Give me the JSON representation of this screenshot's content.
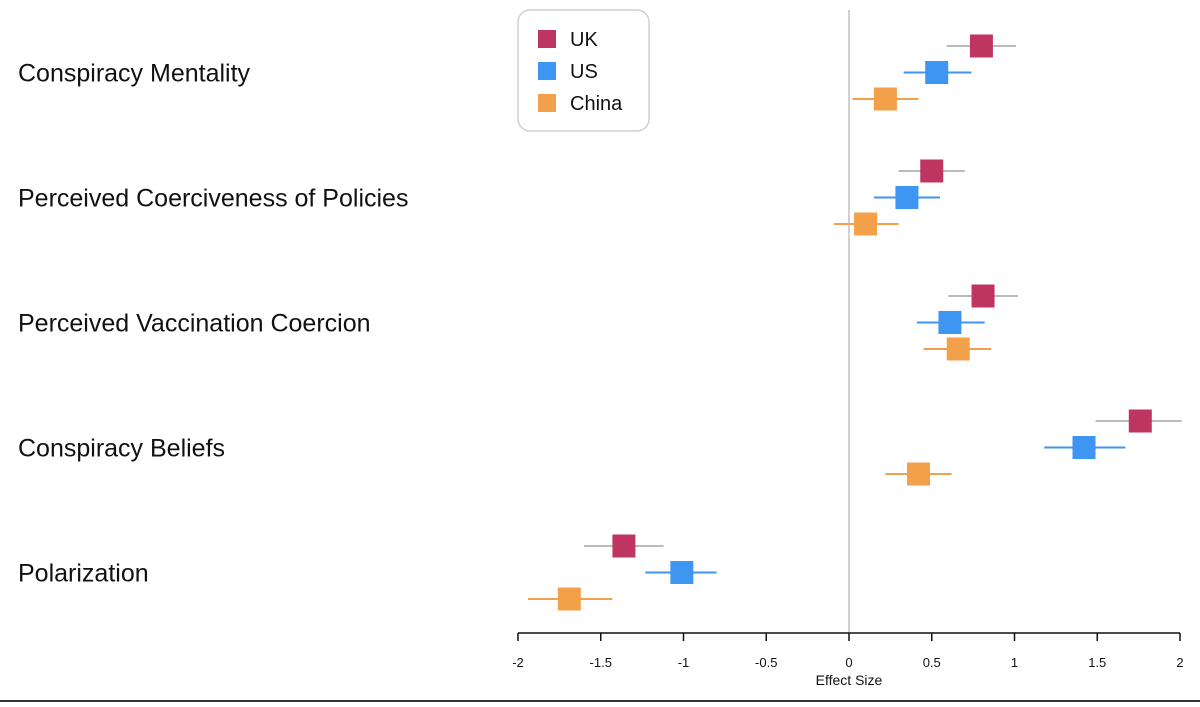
{
  "chart_data": {
    "type": "forest",
    "xlabel": "Effect Size",
    "xlim": [
      -2,
      2
    ],
    "xticks": [
      -2,
      -1.5,
      -1,
      -0.5,
      0,
      0.5,
      1,
      1.5,
      2
    ],
    "xtick_labels": [
      "-2",
      "-1.5",
      "-1",
      "-0.5",
      "0",
      "0.5",
      "1",
      "1.5",
      "2"
    ],
    "reference_line": 0,
    "grid": false,
    "legend_position": "top-center",
    "categories": [
      "Conspiracy Mentality",
      "Perceived Coerciveness of Policies",
      "Perceived Vaccination Coercion",
      "Conspiracy Beliefs",
      "Polarization"
    ],
    "series": [
      {
        "name": "UK",
        "color": "#bf3561",
        "ci_color": "#bbbbbb",
        "estimates": [
          0.8,
          0.5,
          0.81,
          1.76,
          -1.36
        ],
        "ci_low": [
          0.59,
          0.3,
          0.6,
          1.49,
          -1.6
        ],
        "ci_high": [
          1.01,
          0.7,
          1.02,
          2.01,
          -1.12
        ]
      },
      {
        "name": "US",
        "color": "#3f95f2",
        "ci_color": "#3f95f2",
        "estimates": [
          0.53,
          0.35,
          0.61,
          1.42,
          -1.01
        ],
        "ci_low": [
          0.33,
          0.15,
          0.41,
          1.18,
          -1.23
        ],
        "ci_high": [
          0.74,
          0.55,
          0.82,
          1.67,
          -0.8
        ]
      },
      {
        "name": "China",
        "color": "#f2a04a",
        "ci_color": "#f2a04a",
        "estimates": [
          0.22,
          0.1,
          0.66,
          0.42,
          -1.69
        ],
        "ci_low": [
          0.02,
          -0.09,
          0.45,
          0.22,
          -1.94
        ],
        "ci_high": [
          0.42,
          0.3,
          0.86,
          0.62,
          -1.43
        ]
      }
    ]
  }
}
